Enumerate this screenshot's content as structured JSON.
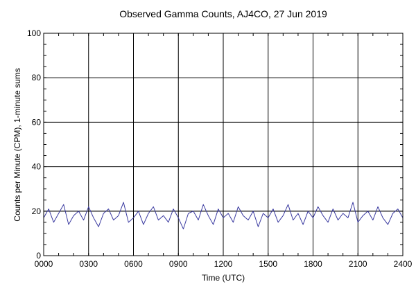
{
  "chart_data": {
    "type": "line",
    "title": "Observed Gamma Counts, AJ4CO, 27 Jun 2019",
    "xlabel": "Time (UTC)",
    "ylabel": "Counts per Minute (CPM), 1-minute sums",
    "xlim": [
      0,
      1440
    ],
    "ylim": [
      0,
      100
    ],
    "x_ticks": [
      {
        "pos": 0,
        "label": "0000"
      },
      {
        "pos": 180,
        "label": "0300"
      },
      {
        "pos": 360,
        "label": "0600"
      },
      {
        "pos": 540,
        "label": "0900"
      },
      {
        "pos": 720,
        "label": "1200"
      },
      {
        "pos": 900,
        "label": "1500"
      },
      {
        "pos": 1080,
        "label": "1800"
      },
      {
        "pos": 1260,
        "label": "2100"
      },
      {
        "pos": 1440,
        "label": "2400"
      }
    ],
    "y_ticks": [
      {
        "pos": 0,
        "label": "0"
      },
      {
        "pos": 20,
        "label": "20"
      },
      {
        "pos": 40,
        "label": "40"
      },
      {
        "pos": 60,
        "label": "60"
      },
      {
        "pos": 80,
        "label": "80"
      },
      {
        "pos": 100,
        "label": "100"
      }
    ],
    "grid": true,
    "reference_line": 20,
    "series_color": "#3a3aa0",
    "series": [
      {
        "x": [
          0,
          20,
          40,
          60,
          80,
          100,
          120,
          140,
          160,
          180,
          200,
          220,
          240,
          260,
          280,
          300,
          320,
          340,
          360,
          380,
          400,
          420,
          440,
          460,
          480,
          500,
          520,
          540,
          560,
          580,
          600,
          620,
          640,
          660,
          680,
          700,
          720,
          740,
          760,
          780,
          800,
          820,
          840,
          860,
          880,
          900,
          920,
          940,
          960,
          980,
          1000,
          1020,
          1040,
          1060,
          1080,
          1100,
          1120,
          1140,
          1160,
          1180,
          1200,
          1220,
          1240,
          1260,
          1280,
          1300,
          1320,
          1340,
          1360,
          1380,
          1400,
          1420,
          1440
        ],
        "values": [
          17,
          21,
          15,
          19,
          23,
          14,
          18,
          20,
          16,
          22,
          17,
          13,
          19,
          21,
          16,
          18,
          24,
          15,
          17,
          20,
          14,
          19,
          22,
          16,
          18,
          15,
          21,
          17,
          12,
          19,
          20,
          16,
          23,
          18,
          14,
          21,
          17,
          19,
          15,
          22,
          18,
          16,
          20,
          13,
          19,
          17,
          21,
          15,
          18,
          23,
          16,
          19,
          14,
          20,
          17,
          22,
          18,
          15,
          21,
          16,
          19,
          17,
          24,
          15,
          18,
          20,
          16,
          22,
          17,
          14,
          19,
          21,
          17
        ]
      }
    ]
  }
}
